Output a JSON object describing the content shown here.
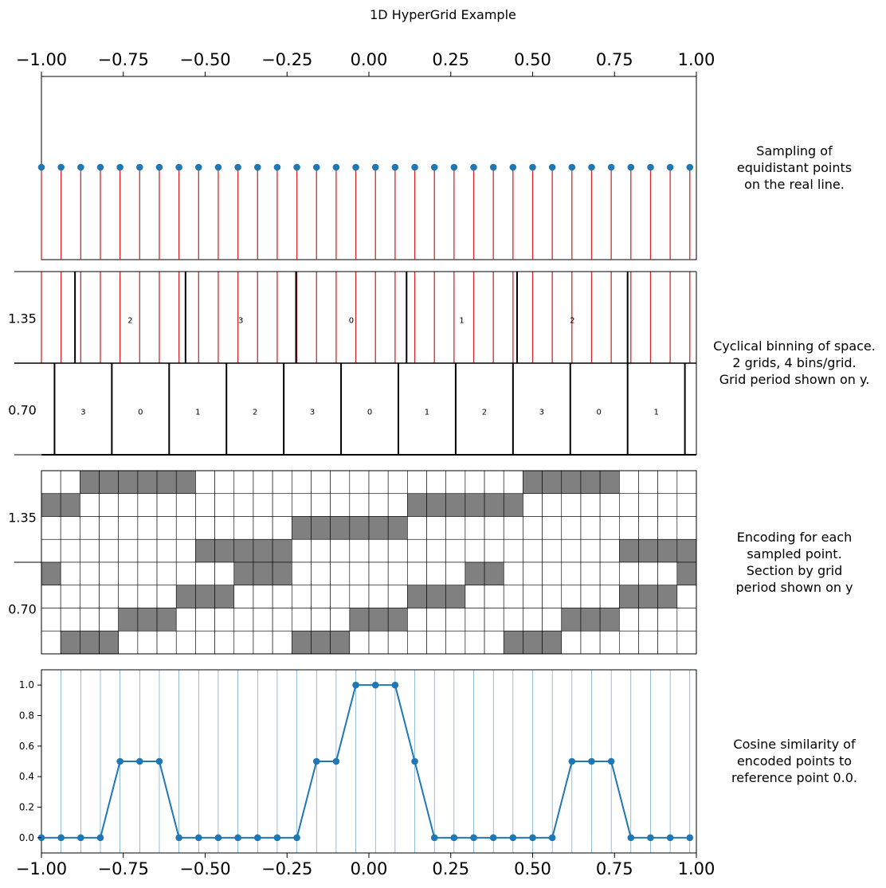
{
  "chart_data": {
    "title": "1D HyperGrid Example",
    "x_range": [
      -1.0,
      1.0
    ],
    "x_tick_labels": [
      "−1.00",
      "−0.75",
      "−0.50",
      "−0.25",
      "0.00",
      "0.25",
      "0.50",
      "0.75",
      "1.00"
    ],
    "x_tick_values": [
      -1.0,
      -0.75,
      -0.5,
      -0.25,
      0.0,
      0.25,
      0.5,
      0.75,
      1.0
    ],
    "sample_x": [
      -1.0,
      -0.94,
      -0.88,
      -0.82,
      -0.76,
      -0.7,
      -0.64,
      -0.58,
      -0.52,
      -0.46,
      -0.4,
      -0.34,
      -0.28,
      -0.22,
      -0.16,
      -0.1,
      -0.04,
      0.02,
      0.08,
      0.14,
      0.2,
      0.26,
      0.32,
      0.38,
      0.44,
      0.5,
      0.56,
      0.62,
      0.68,
      0.74,
      0.8,
      0.86,
      0.92,
      0.98
    ],
    "panels": [
      {
        "type": "scatter",
        "description": "Sampling of equidistant points on the real line.",
        "label_lines": [
          "Sampling of",
          "equidistant points",
          "on the real line."
        ],
        "marker_color": "#1f77b4",
        "drop_line_color": "#d62728"
      },
      {
        "type": "binning",
        "label_lines": [
          "Cyclical binning of space.",
          "2 grids, 4 bins/grid.",
          "Grid period shown on y."
        ],
        "grids": [
          {
            "period": 1.35,
            "period_label": "1.35",
            "offset": 0.79,
            "visible_bins": [
              "2",
              "3",
              "0",
              "1",
              "2"
            ]
          },
          {
            "period": 0.7,
            "period_label": "0.70",
            "offset": 0.44,
            "visible_bins": [
              "3",
              "0",
              "1",
              "2",
              "3",
              "0",
              "1",
              "2",
              "3",
              "0",
              "1"
            ]
          }
        ]
      },
      {
        "type": "heatmap",
        "label_lines": [
          "Encoding for each",
          "sampled point.",
          "Section by grid",
          "period shown on y"
        ],
        "y_tick_labels": [
          "1.35",
          "0.70"
        ],
        "bins_per_grid": 4,
        "filled_color": "#808080",
        "empty_color": "#ffffff"
      },
      {
        "type": "line",
        "label_lines": [
          "Cosine similarity of",
          "encoded points to",
          "reference point 0.0."
        ],
        "reference_point": 0.0,
        "ylim": [
          -0.1,
          1.1
        ],
        "y_tick_labels": [
          "0.0",
          "0.2",
          "0.4",
          "0.6",
          "0.8",
          "1.0"
        ],
        "y_tick_values": [
          0.0,
          0.2,
          0.4,
          0.6,
          0.8,
          1.0
        ],
        "series": [
          {
            "values": [
              0,
              0,
              0,
              0,
              0.5,
              0.5,
              0.5,
              0,
              0,
              0,
              0,
              0,
              0,
              0,
              0.5,
              0.5,
              1,
              1,
              1,
              0.5,
              0,
              0,
              0,
              0,
              0,
              0,
              0,
              0.5,
              0.5,
              0.5,
              0,
              0,
              0,
              0
            ],
            "color": "#1f77b4"
          }
        ]
      }
    ]
  }
}
